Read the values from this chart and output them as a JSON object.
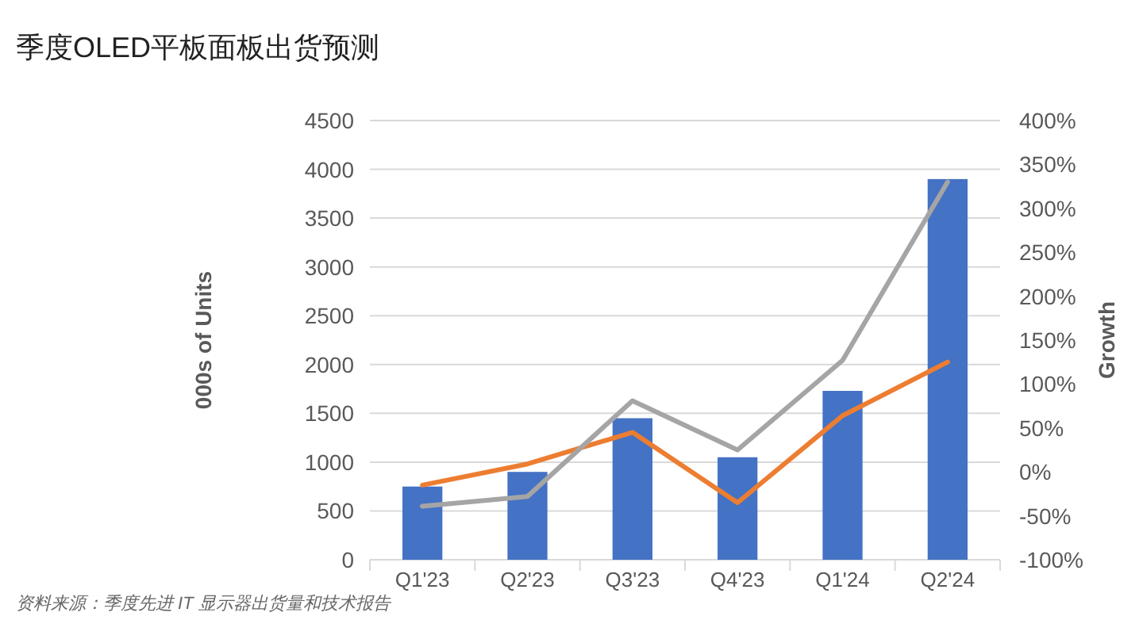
{
  "chart_data": {
    "type": "bar",
    "title": "季度OLED平板面板出货预测",
    "ylabel": "000s of Units",
    "y2label": "Growth",
    "categories": [
      "Q1'23",
      "Q2'23",
      "Q3'23",
      "Q4'23",
      "Q1'24",
      "Q2'24"
    ],
    "series": [
      {
        "color": "#4472c4",
        "values": [
          750,
          900,
          1450,
          1050,
          1730,
          3900
        ]
      },
      {
        "type": "line",
        "axis": "y2",
        "color": "#ed7d31",
        "values": [
          -15,
          9,
          45,
          -35,
          64,
          125
        ]
      },
      {
        "type": "line",
        "axis": "y2",
        "color": "#a5a5a5",
        "values": [
          -39,
          -28,
          81,
          25,
          127,
          330
        ]
      }
    ],
    "ylim": [
      0,
      4500
    ],
    "yticks": [
      0,
      500,
      1000,
      1500,
      2000,
      2500,
      3000,
      3500,
      4000,
      4500
    ],
    "y2lim": [
      -100,
      400
    ],
    "y2ticks": [
      {
        "value": -100,
        "label": "-100%"
      },
      {
        "value": -50,
        "label": "-50%"
      },
      {
        "value": 0,
        "label": "0%"
      },
      {
        "value": 50,
        "label": "50%"
      },
      {
        "value": 100,
        "label": "100%"
      },
      {
        "value": 150,
        "label": "150%"
      },
      {
        "value": 200,
        "label": "200%"
      },
      {
        "value": 250,
        "label": "250%"
      },
      {
        "value": 300,
        "label": "300%"
      },
      {
        "value": 350,
        "label": "350%"
      },
      {
        "value": 400,
        "label": "400%"
      }
    ],
    "grid": "y",
    "marker": "none",
    "annotations": [
      "资料来源：季度先进 IT 显示器出货量和技术报告"
    ]
  }
}
